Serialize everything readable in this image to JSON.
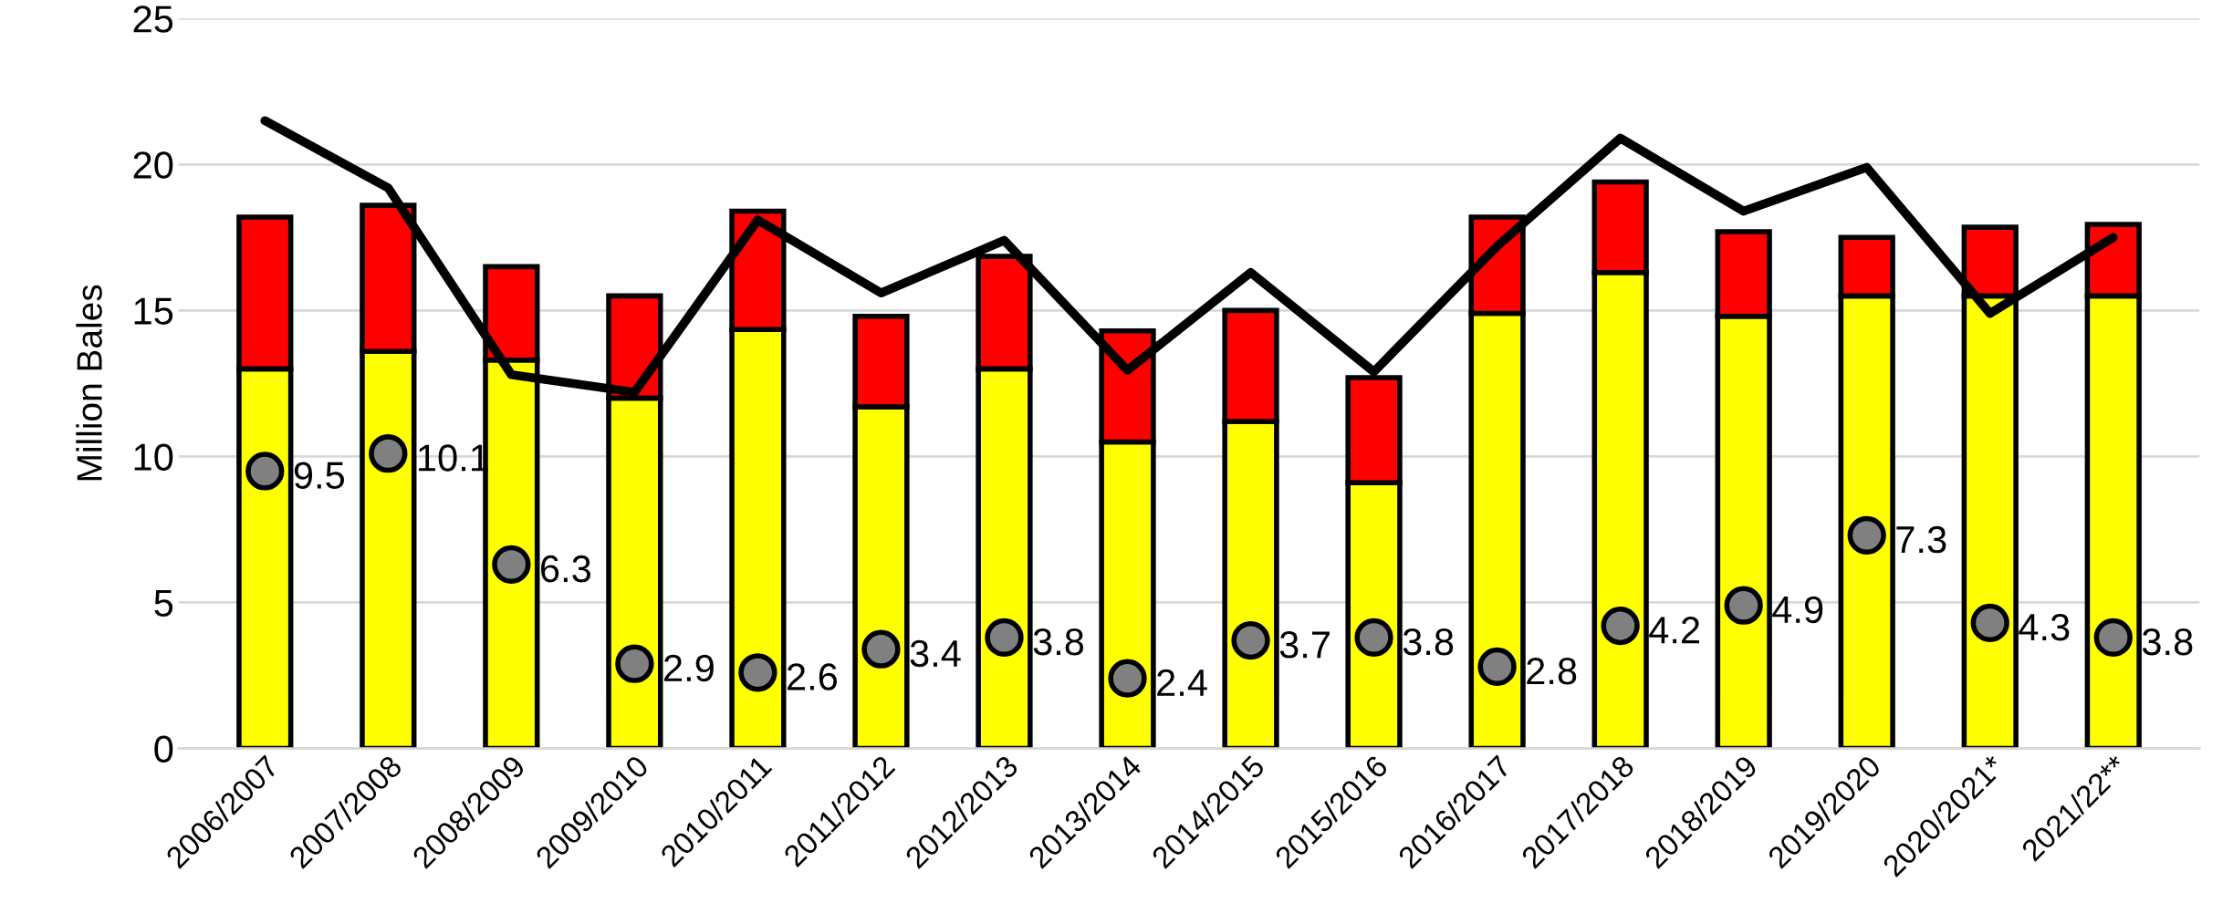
{
  "chart_data": {
    "type": "bar",
    "ylabel": "Million Bales",
    "stacked": true,
    "grid": "y",
    "legend": false,
    "categories": [
      "2006/2007",
      "2007/2008",
      "2008/2009",
      "2009/2010",
      "2010/2011",
      "2011/2012",
      "2012/2013",
      "2013/2014",
      "2014/2015",
      "2015/2016",
      "2016/2017",
      "2017/2018",
      "2018/2019",
      "2019/2020",
      "2020/2021*",
      "2021/22**"
    ],
    "ylim": [
      0,
      25
    ],
    "yticks": [
      0,
      5,
      10,
      15,
      20,
      25
    ],
    "series": [
      {
        "type": "bar",
        "color": "#ffff00",
        "values": [
          13.0,
          13.6,
          13.3,
          12.0,
          14.35,
          11.7,
          13.0,
          10.5,
          11.2,
          9.1,
          14.9,
          16.3,
          14.8,
          15.5,
          15.5,
          15.5
        ]
      },
      {
        "type": "bar",
        "color": "#ff0000",
        "values": [
          5.2,
          5.0,
          3.2,
          3.5,
          4.05,
          3.1,
          3.85,
          3.8,
          3.8,
          3.6,
          3.3,
          3.1,
          2.9,
          2.0,
          2.35,
          2.45
        ]
      },
      {
        "type": "line",
        "color": "#000000",
        "marker": "none",
        "line_style": "solid",
        "values": [
          21.5,
          19.2,
          12.8,
          12.2,
          18.1,
          15.6,
          17.4,
          12.95,
          16.3,
          12.9,
          17.2,
          20.9,
          18.4,
          19.9,
          14.9,
          17.5
        ]
      },
      {
        "type": "scatter",
        "color": "#808080",
        "marker": "circle",
        "values": [
          9.5,
          10.1,
          6.3,
          2.9,
          2.6,
          3.4,
          3.8,
          2.4,
          3.7,
          3.8,
          2.8,
          4.2,
          4.9,
          7.3,
          4.3,
          3.8
        ],
        "value_labels": [
          "9.5",
          "10.1",
          "6.3",
          "2.9",
          "2.6",
          "3.4",
          "3.8",
          "2.4",
          "3.7",
          "3.8",
          "2.8",
          "4.2",
          "4.9",
          "7.3",
          "4.3",
          "3.8"
        ]
      }
    ]
  }
}
